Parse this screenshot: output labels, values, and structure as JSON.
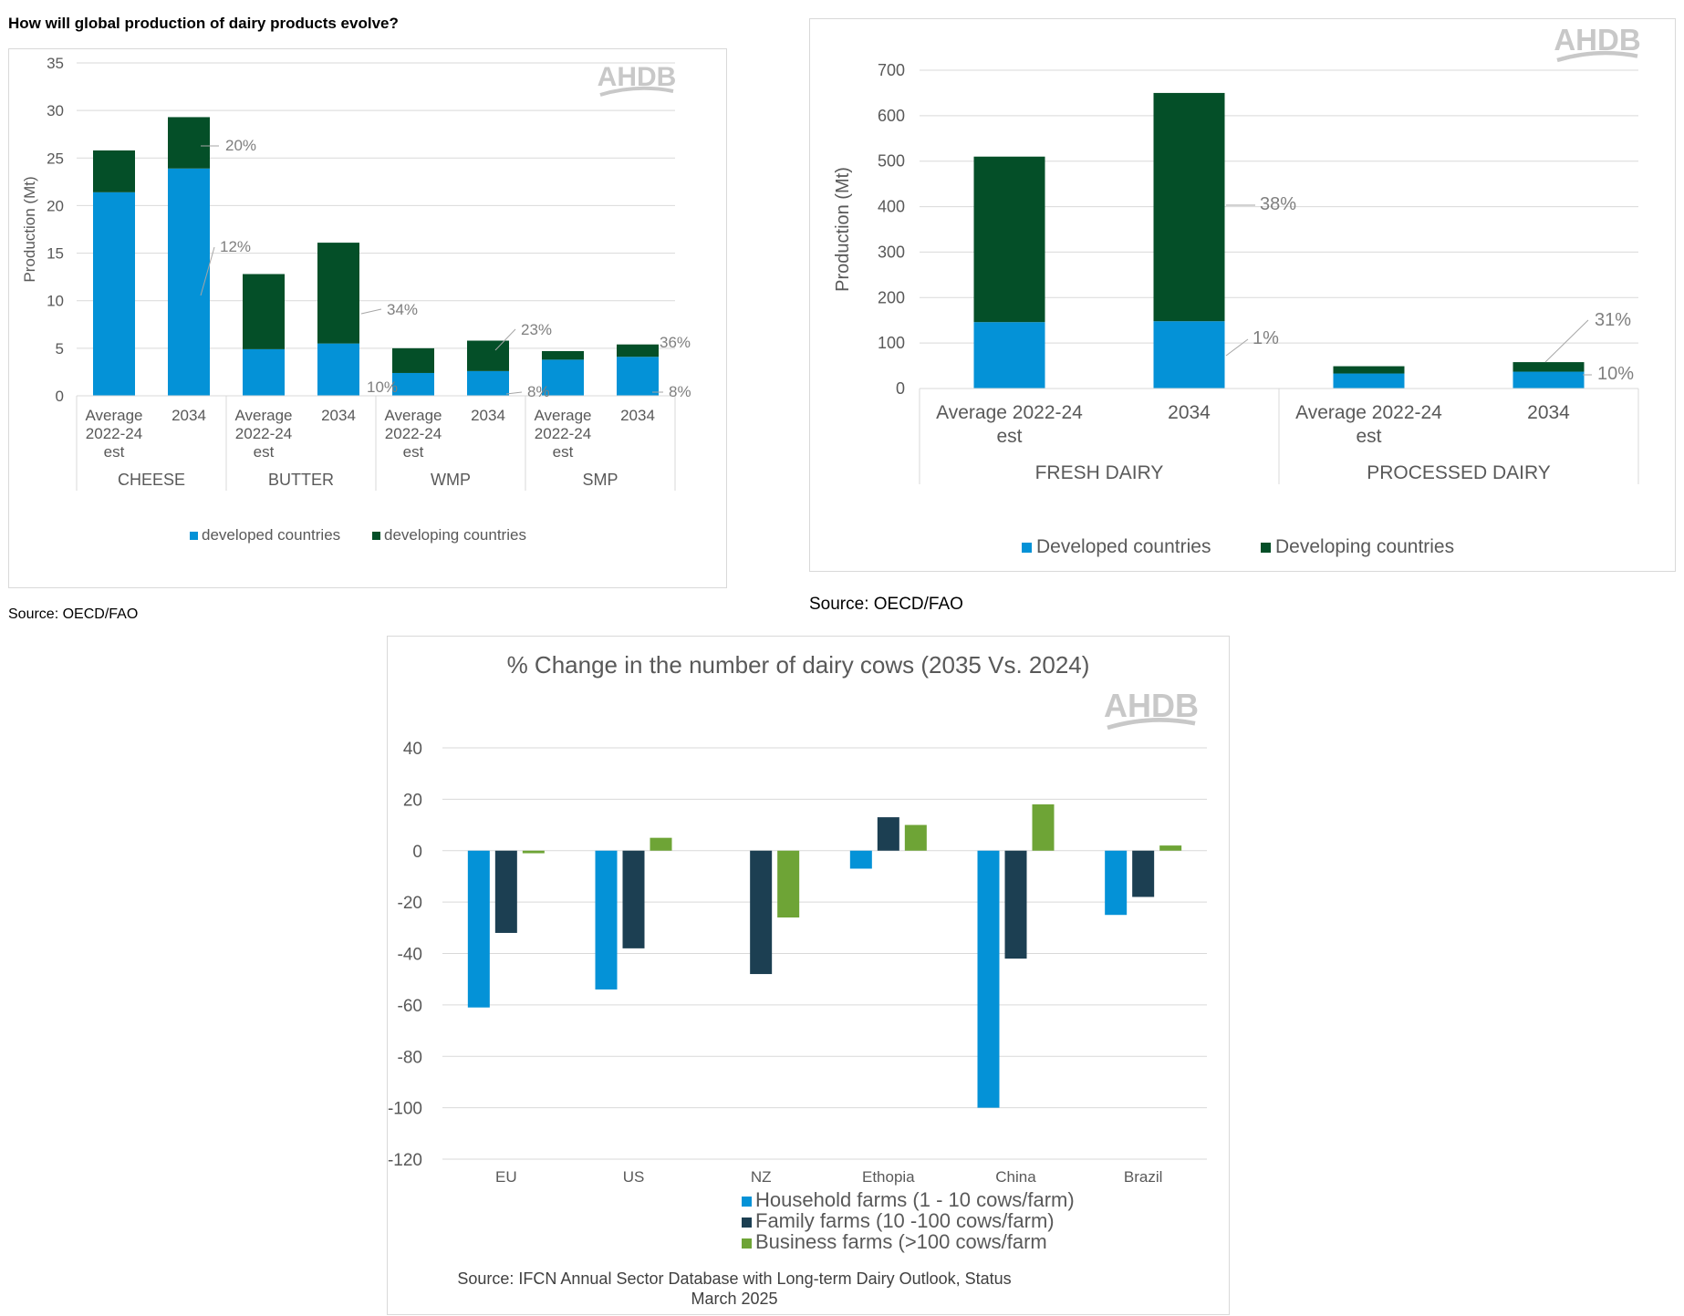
{
  "page": {
    "title": "How will global production of dairy products evolve?"
  },
  "sources": {
    "chart1": "Source: OECD/FAO",
    "chart2": "Source: OECD/FAO"
  },
  "brand": {
    "logo_text": "AHDB"
  },
  "colors": {
    "developed": "#0492d7",
    "developing": "#044f28",
    "household": "#0492d7",
    "family": "#1c3f52",
    "business": "#6ea436",
    "grid": "#d9d9d9",
    "text": "#595959"
  },
  "chart_data": [
    {
      "id": "products",
      "type": "bar",
      "stacked": true,
      "ylabel": "Production (Mt)",
      "ylim": [
        0,
        35
      ],
      "yticks": [
        0,
        5,
        10,
        15,
        20,
        25,
        30,
        35
      ],
      "groups": [
        "CHEESE",
        "BUTTER",
        "WMP",
        "SMP"
      ],
      "categories": [
        [
          "Average",
          "2022-24",
          "est"
        ],
        [
          "2034"
        ],
        [
          "Average",
          "2022-24",
          "est"
        ],
        [
          "2034"
        ],
        [
          "Average",
          "2022-24",
          "est"
        ],
        [
          "2034"
        ],
        [
          "Average",
          "2022-24",
          "est"
        ],
        [
          "2034"
        ]
      ],
      "series": [
        {
          "name": "developed countries",
          "values": [
            21.4,
            23.9,
            4.9,
            5.5,
            2.4,
            2.6,
            3.8,
            4.1
          ]
        },
        {
          "name": "developing countries",
          "values": [
            4.4,
            5.4,
            7.9,
            10.6,
            2.6,
            3.2,
            0.9,
            1.3
          ]
        }
      ],
      "annotations": [
        "20%",
        "12%",
        "34%",
        "10%",
        "23%",
        "8%",
        "36%",
        "8%"
      ],
      "legend_position": "bottom",
      "grid": true
    },
    {
      "id": "fresh-processed",
      "type": "bar",
      "stacked": true,
      "ylabel": "Production (Mt)",
      "ylim": [
        0,
        700
      ],
      "yticks": [
        0,
        100,
        200,
        300,
        400,
        500,
        600,
        700
      ],
      "groups": [
        "FRESH DAIRY",
        "PROCESSED DAIRY"
      ],
      "categories": [
        [
          "Average 2022-24",
          "est"
        ],
        [
          "2034"
        ],
        [
          "Average 2022-24",
          "est"
        ],
        [
          "2034"
        ]
      ],
      "series": [
        {
          "name": "Developed countries",
          "values": [
            146,
            148,
            33,
            37
          ]
        },
        {
          "name": "Developing countries",
          "values": [
            364,
            502,
            16,
            21
          ]
        }
      ],
      "annotations": [
        "38%",
        "1%",
        "31%",
        "10%"
      ],
      "legend_position": "bottom",
      "grid": true
    },
    {
      "id": "cows",
      "type": "bar",
      "title": "% Change in the number of dairy cows (2035 Vs. 2024)",
      "ylim": [
        -120,
        40
      ],
      "yticks": [
        40,
        20,
        0,
        -20,
        -40,
        -60,
        -80,
        -100,
        -120
      ],
      "categories": [
        "EU",
        "US",
        "NZ",
        "Ethopia",
        "China",
        "Brazil"
      ],
      "series": [
        {
          "name": "Household farms (1 - 10 cows/farm)",
          "values": [
            -61,
            -54,
            0,
            -7,
            -100,
            -25
          ]
        },
        {
          "name": "Family farms (10 -100 cows/farm)",
          "values": [
            -32,
            -38,
            -48,
            13,
            -42,
            -18
          ]
        },
        {
          "name": "Business farms (>100 cows/farm",
          "values": [
            -1,
            5,
            -26,
            10,
            18,
            2
          ]
        }
      ],
      "source": "Source: IFCN Annual Sector Database with Long-term Dairy Outlook, Status March 2025",
      "legend_position": "bottom",
      "grid": true
    }
  ]
}
